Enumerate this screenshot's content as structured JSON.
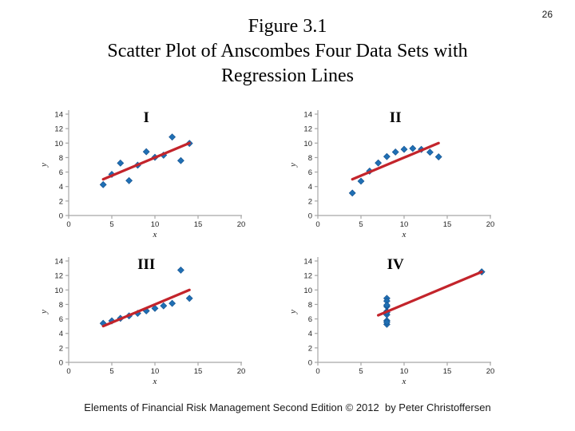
{
  "page": {
    "number": "26"
  },
  "title": {
    "line1": "Figure 3.1",
    "line2": "Scatter Plot of Anscombes Four Data Sets with",
    "line3": "Regression Lines"
  },
  "footer": {
    "text": "Elements of Financial Risk Management Second Edition © 2012  by Peter Christoffersen"
  },
  "colors": {
    "marker_fill": "#1F6FB4",
    "marker_stroke": "#15508C",
    "regression_line": "#C3242B",
    "axis": "#A6A6A6",
    "tick_text": "#262626"
  },
  "chart_data": [
    {
      "id": "I",
      "type": "scatter",
      "title": "I",
      "xlabel": "x",
      "ylabel": "y",
      "xlim": [
        0,
        20
      ],
      "ylim": [
        0,
        14
      ],
      "xticks": [
        0,
        5,
        10,
        15,
        20
      ],
      "yticks": [
        0,
        2,
        4,
        6,
        8,
        10,
        12,
        14
      ],
      "grid": false,
      "legend": false,
      "points": [
        [
          10,
          8.04
        ],
        [
          8,
          6.95
        ],
        [
          13,
          7.58
        ],
        [
          9,
          8.81
        ],
        [
          11,
          8.33
        ],
        [
          14,
          9.96
        ],
        [
          6,
          7.24
        ],
        [
          4,
          4.26
        ],
        [
          12,
          10.84
        ],
        [
          7,
          4.82
        ],
        [
          5,
          5.68
        ]
      ],
      "regression_line": {
        "x": [
          4,
          14
        ],
        "y": [
          5.0,
          10.0
        ]
      }
    },
    {
      "id": "II",
      "type": "scatter",
      "title": "II",
      "xlabel": "x",
      "ylabel": "y",
      "xlim": [
        0,
        20
      ],
      "ylim": [
        0,
        14
      ],
      "xticks": [
        0,
        5,
        10,
        15,
        20
      ],
      "yticks": [
        0,
        2,
        4,
        6,
        8,
        10,
        12,
        14
      ],
      "grid": false,
      "legend": false,
      "points": [
        [
          10,
          9.14
        ],
        [
          8,
          8.14
        ],
        [
          13,
          8.74
        ],
        [
          9,
          8.77
        ],
        [
          11,
          9.26
        ],
        [
          14,
          8.1
        ],
        [
          6,
          6.13
        ],
        [
          4,
          3.1
        ],
        [
          12,
          9.13
        ],
        [
          7,
          7.26
        ],
        [
          5,
          4.74
        ]
      ],
      "regression_line": {
        "x": [
          4,
          14
        ],
        "y": [
          5.0,
          10.0
        ]
      }
    },
    {
      "id": "III",
      "type": "scatter",
      "title": "III",
      "xlabel": "x",
      "ylabel": "y",
      "xlim": [
        0,
        20
      ],
      "ylim": [
        0,
        14
      ],
      "xticks": [
        0,
        5,
        10,
        15,
        20
      ],
      "yticks": [
        0,
        2,
        4,
        6,
        8,
        10,
        12,
        14
      ],
      "grid": false,
      "legend": false,
      "points": [
        [
          10,
          7.46
        ],
        [
          8,
          6.77
        ],
        [
          13,
          12.74
        ],
        [
          9,
          7.11
        ],
        [
          11,
          7.81
        ],
        [
          14,
          8.84
        ],
        [
          6,
          6.08
        ],
        [
          4,
          5.39
        ],
        [
          12,
          8.15
        ],
        [
          7,
          6.42
        ],
        [
          5,
          5.73
        ]
      ],
      "regression_line": {
        "x": [
          4,
          14
        ],
        "y": [
          5.0,
          10.0
        ]
      }
    },
    {
      "id": "IV",
      "type": "scatter",
      "title": "IV",
      "xlabel": "x",
      "ylabel": "y",
      "xlim": [
        0,
        20
      ],
      "ylim": [
        0,
        14
      ],
      "xticks": [
        0,
        5,
        10,
        15,
        20
      ],
      "yticks": [
        0,
        2,
        4,
        6,
        8,
        10,
        12,
        14
      ],
      "grid": false,
      "legend": false,
      "points": [
        [
          8,
          6.58
        ],
        [
          8,
          5.76
        ],
        [
          8,
          7.71
        ],
        [
          8,
          8.84
        ],
        [
          8,
          8.47
        ],
        [
          8,
          7.04
        ],
        [
          8,
          5.25
        ],
        [
          19,
          12.5
        ],
        [
          8,
          5.56
        ],
        [
          8,
          7.91
        ],
        [
          8,
          6.89
        ]
      ],
      "regression_line": {
        "x": [
          7,
          19
        ],
        "y": [
          6.5,
          12.5
        ]
      }
    }
  ]
}
